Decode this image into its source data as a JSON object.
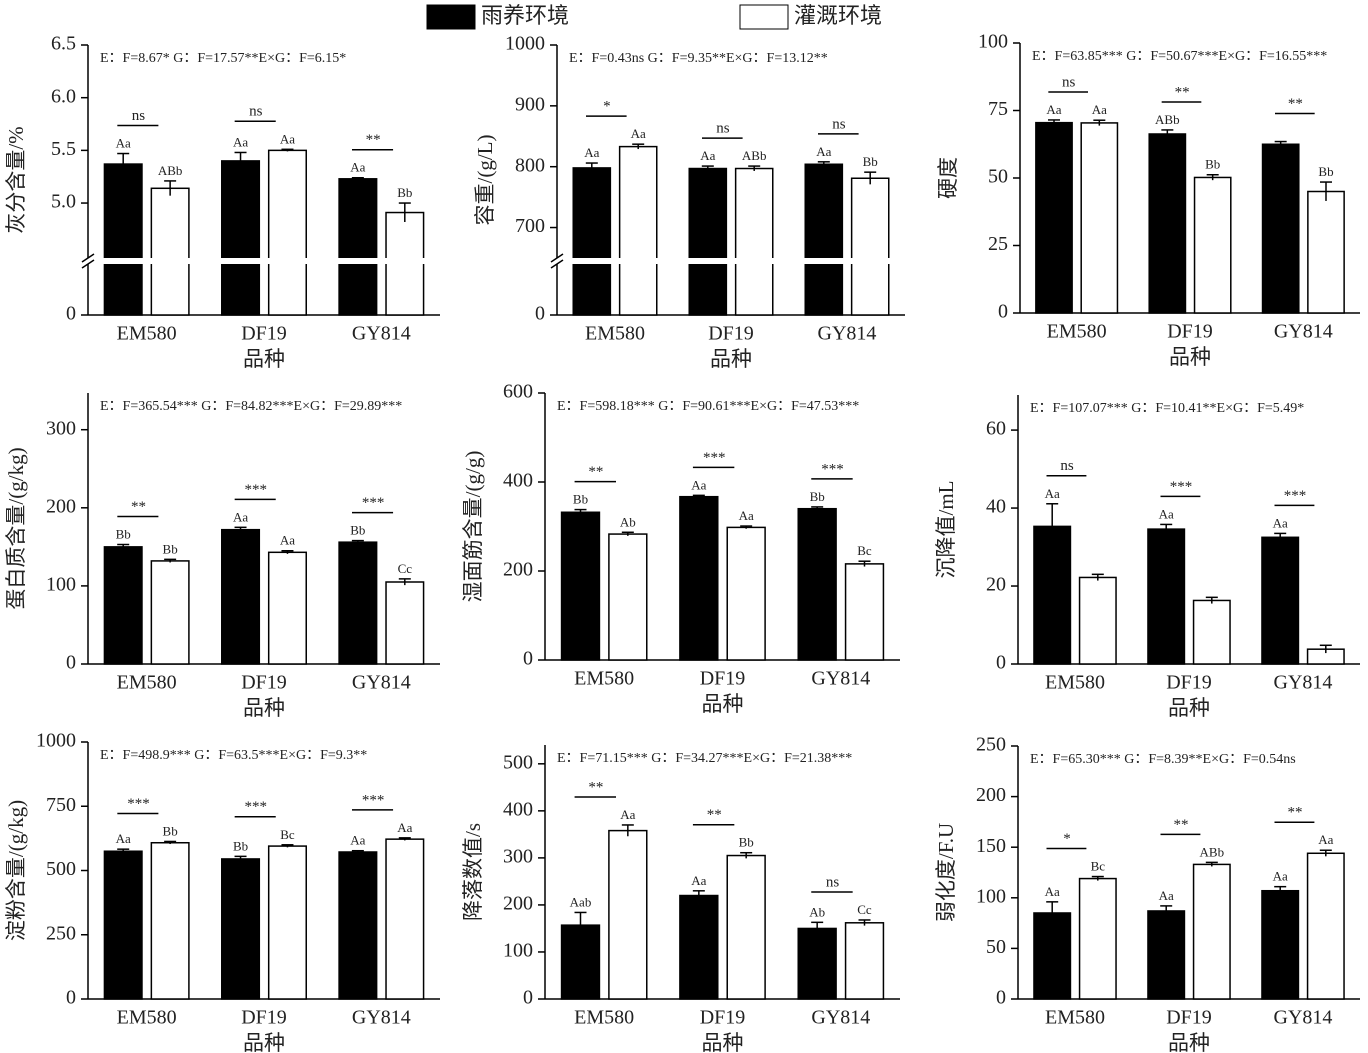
{
  "chart_data": [
    {
      "type": "bar",
      "annotation": "E：F=8.67* G：F=17.57**E×G：F=6.15*",
      "ylabel": "灰分含量/%",
      "xlabel": "品种",
      "categories": [
        "EM580",
        "DF19",
        "GY814"
      ],
      "series": [
        {
          "name": "雨养环境",
          "color": "#000000",
          "values": [
            5.37,
            5.4,
            5.23
          ],
          "errors": [
            0.1,
            0.08,
            0.01
          ],
          "letters": [
            "Aa",
            "Aa",
            "Aa"
          ]
        },
        {
          "name": "灌溉环境",
          "color": "#ffffff",
          "values": [
            5.14,
            5.5,
            4.91
          ],
          "errors": [
            0.07,
            0.01,
            0.09
          ],
          "letters": [
            "ABb",
            "Aa",
            "Bb"
          ]
        }
      ],
      "significance": [
        "ns",
        "ns",
        "**"
      ],
      "ylim": [
        4.45,
        6.5
      ],
      "axis_break": true,
      "yticks": [
        0,
        {
          "value": 5,
          "label": "5.0"
        },
        5.5,
        {
          "value": 6,
          "label": "6.0"
        },
        6.5
      ]
    },
    {
      "type": "bar",
      "annotation": "E：F=0.43ns G：F=9.35**E×G：F=13.12**",
      "ylabel": "容重/(g/L)",
      "xlabel": "品种",
      "categories": [
        "EM580",
        "DF19",
        "GY814"
      ],
      "series": [
        {
          "color": "#000000",
          "values": [
            798,
            797,
            804
          ],
          "errors": [
            8,
            4,
            4
          ],
          "letters": [
            "Aa",
            "Aa",
            "Aa"
          ]
        },
        {
          "color": "#ffffff",
          "values": [
            833,
            797,
            781
          ],
          "errors": [
            4,
            4,
            10
          ],
          "letters": [
            "Aa",
            "ABb",
            "Bb"
          ]
        }
      ],
      "significance": [
        "*",
        "ns",
        "ns"
      ],
      "ylim": [
        645,
        1000
      ],
      "axis_break": true,
      "yticks": [
        0,
        700,
        800,
        900,
        1000
      ]
    },
    {
      "type": "bar",
      "annotation": "E：F=63.85*** G：F=50.67***E×G：F=16.55***",
      "ylabel": "硬度",
      "xlabel": "品种",
      "categories": [
        "EM580",
        "DF19",
        "GY814"
      ],
      "series": [
        {
          "color": "#000000",
          "values": [
            70.5,
            66.3,
            62.5
          ],
          "errors": [
            1,
            1.5,
            1
          ],
          "letters": [
            "Aa",
            "ABb",
            null
          ]
        },
        {
          "color": "#ffffff",
          "values": [
            70.4,
            50.2,
            45
          ],
          "errors": [
            1,
            1,
            3.5
          ],
          "letters": [
            "Aa",
            "Bb",
            "Bb"
          ]
        }
      ],
      "significance": [
        "ns",
        "**",
        "**"
      ],
      "ylim": [
        0,
        100
      ],
      "yticks": [
        0,
        25,
        50,
        75,
        100
      ]
    },
    {
      "type": "bar",
      "annotation": "E：F=365.54*** G：F=84.82***E×G：F=29.89***",
      "ylabel": "蛋白质含量/(g/kg)",
      "xlabel": "品种",
      "categories": [
        "EM580",
        "DF19",
        "GY814"
      ],
      "series": [
        {
          "color": "#000000",
          "values": [
            150,
            172,
            156
          ],
          "errors": [
            3,
            3,
            2
          ],
          "letters": [
            "Bb",
            "Aa",
            "Bb"
          ]
        },
        {
          "color": "#ffffff",
          "values": [
            132,
            143,
            105
          ],
          "errors": [
            2,
            2,
            4
          ],
          "letters": [
            "Bb",
            "Aa",
            "Cc"
          ]
        }
      ],
      "significance": [
        "**",
        "***",
        "***"
      ],
      "ylim": [
        0,
        347
      ],
      "yticks": [
        0,
        100,
        200,
        300
      ]
    },
    {
      "type": "bar",
      "annotation": "E：F=598.18*** G：F=90.61***E×G：F=47.53***",
      "ylabel": "湿面筋含量/(g/g)",
      "xlabel": "品种",
      "categories": [
        "EM580",
        "DF19",
        "GY814"
      ],
      "series": [
        {
          "color": "#000000",
          "values": [
            332,
            367,
            340
          ],
          "errors": [
            6,
            3,
            4
          ],
          "letters": [
            "Bb",
            "Aa",
            "Bb"
          ]
        },
        {
          "color": "#ffffff",
          "values": [
            283,
            298,
            216
          ],
          "errors": [
            4,
            3,
            6
          ],
          "letters": [
            "Ab",
            "Aa",
            "Bc"
          ]
        }
      ],
      "significance": [
        "**",
        "***",
        "***"
      ],
      "ylim": [
        0,
        600
      ],
      "yticks": [
        0,
        200,
        400,
        600
      ]
    },
    {
      "type": "bar",
      "annotation": "E：F=107.07*** G：F=10.41**E×G：F=5.49*",
      "ylabel": "沉降值/mL",
      "xlabel": "品种",
      "categories": [
        "EM580",
        "DF19",
        "GY814"
      ],
      "series": [
        {
          "color": "#000000",
          "values": [
            35.3,
            34.6,
            32.5
          ],
          "errors": [
            5.8,
            1.2,
            1
          ],
          "letters": [
            "Aa",
            "Aa",
            "Aa"
          ]
        },
        {
          "color": "#ffffff",
          "values": [
            22.2,
            16.3,
            3.8
          ],
          "errors": [
            0.8,
            0.8,
            1
          ],
          "letters": [
            null,
            null,
            null
          ]
        }
      ],
      "significance": [
        "ns",
        "***",
        "***"
      ],
      "ylim": [
        0,
        69
      ],
      "yticks": [
        0,
        20,
        40,
        60
      ]
    },
    {
      "type": "bar",
      "annotation": "E：F=498.9*** G：F=63.5***E×G：F=9.3**",
      "ylabel": "淀粉含量/(g/kg)",
      "xlabel": "品种",
      "categories": [
        "EM580",
        "DF19",
        "GY814"
      ],
      "series": [
        {
          "color": "#000000",
          "values": [
            575,
            545,
            572
          ],
          "errors": [
            8,
            10,
            5
          ],
          "letters": [
            "Aa",
            "Bb",
            "Aa"
          ]
        },
        {
          "color": "#ffffff",
          "values": [
            608,
            595,
            622
          ],
          "errors": [
            5,
            5,
            5
          ],
          "letters": [
            "Bb",
            "Bc",
            "Aa"
          ]
        }
      ],
      "significance": [
        "***",
        "***",
        "***"
      ],
      "ylim": [
        0,
        1000
      ],
      "yticks": [
        0,
        250,
        500,
        750,
        1000
      ]
    },
    {
      "type": "bar",
      "annotation": "E：F=71.15*** G：F=34.27***E×G：F=21.38***",
      "ylabel": "降落数值/s",
      "xlabel": "品种",
      "categories": [
        "EM580",
        "DF19",
        "GY814"
      ],
      "series": [
        {
          "color": "#000000",
          "values": [
            157,
            220,
            150
          ],
          "errors": [
            27,
            10,
            13
          ],
          "letters": [
            "Aab",
            "Aa",
            "Ab"
          ]
        },
        {
          "color": "#ffffff",
          "values": [
            358,
            305,
            162
          ],
          "errors": [
            12,
            6,
            6
          ],
          "letters": [
            "Aa",
            "Bb",
            "Cc"
          ]
        }
      ],
      "significance": [
        "**",
        "**",
        "ns"
      ],
      "ylim": [
        0,
        540
      ],
      "yticks": [
        0,
        100,
        200,
        300,
        400,
        500
      ]
    },
    {
      "type": "bar",
      "annotation": "E：F=65.30*** G：F=8.39**E×G：F=0.54ns",
      "ylabel": "弱化度/F.U",
      "xlabel": "品种",
      "categories": [
        "EM580",
        "DF19",
        "GY814"
      ],
      "series": [
        {
          "color": "#000000",
          "values": [
            85,
            87,
            107
          ],
          "errors": [
            11,
            5,
            4
          ],
          "letters": [
            "Aa",
            "Aa",
            "Aa"
          ]
        },
        {
          "color": "#ffffff",
          "values": [
            119,
            133,
            144
          ],
          "errors": [
            2,
            2,
            3
          ],
          "letters": [
            "Bc",
            "ABb",
            "Aa"
          ]
        }
      ],
      "significance": [
        "*",
        "**",
        "**"
      ],
      "ylim": [
        0,
        250
      ],
      "yticks": [
        0,
        50,
        100,
        150,
        200,
        250
      ]
    }
  ]
}
